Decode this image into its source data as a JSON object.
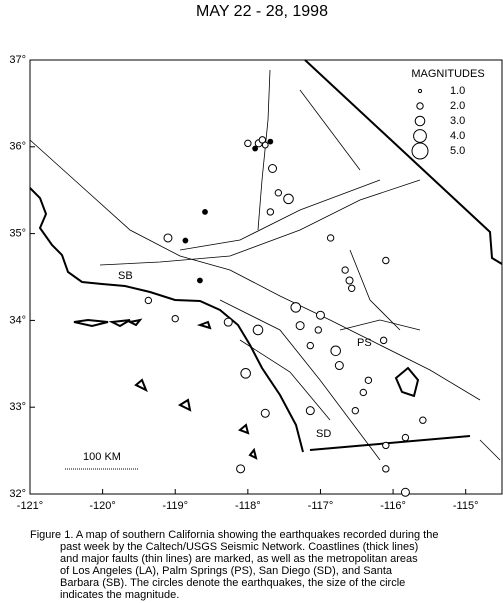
{
  "title": "MAY 22 - 28, 1998",
  "map": {
    "xlim": [
      -121,
      -114.5
    ],
    "ylim": [
      32,
      37
    ],
    "xticks": [
      {
        "value": -121,
        "label": "-121°"
      },
      {
        "value": -120,
        "label": "-120°"
      },
      {
        "value": -119,
        "label": "-119°"
      },
      {
        "value": -118,
        "label": "-118°"
      },
      {
        "value": -117,
        "label": "-117°"
      },
      {
        "value": -116,
        "label": "-116°"
      },
      {
        "value": -115,
        "label": "-115°"
      }
    ],
    "yticks": [
      {
        "value": 32,
        "label": "32°"
      },
      {
        "value": 33,
        "label": "33°"
      },
      {
        "value": 34,
        "label": "34°"
      },
      {
        "value": 35,
        "label": "35°"
      },
      {
        "value": 36,
        "label": "36°"
      },
      {
        "value": 37,
        "label": "37°"
      }
    ],
    "earthquakes": {
      "lon": [
        -118.0,
        -117.85,
        -117.8,
        -117.76,
        -117.9,
        -117.69,
        -117.66,
        -117.44,
        -117.58,
        -119.1,
        -117.69,
        -116.86,
        -116.66,
        -116.6,
        -116.57,
        -116.1,
        -118.66,
        -119.37,
        -119.0,
        -118.27,
        -117.86,
        -117.34,
        -117.28,
        -117.14,
        -116.79,
        -116.74,
        -116.13,
        -116.34,
        -116.41,
        -118.03,
        -117.76,
        -118.1,
        -116.1,
        -116.1,
        -115.83,
        -115.83,
        -117.14,
        -116.52,
        -115.59,
        -118.59,
        -118.86,
        -117.0,
        -117.03
      ],
      "lat": [
        36.04,
        36.04,
        36.08,
        36.02,
        35.98,
        36.06,
        35.75,
        35.4,
        35.47,
        34.95,
        35.25,
        34.95,
        34.58,
        34.46,
        34.37,
        34.69,
        34.46,
        34.23,
        34.02,
        33.98,
        33.89,
        34.15,
        33.94,
        33.71,
        33.65,
        33.48,
        33.77,
        33.31,
        33.17,
        33.39,
        32.93,
        32.29,
        32.56,
        32.29,
        32.02,
        32.65,
        32.96,
        32.96,
        32.85,
        35.25,
        34.92,
        34.06,
        33.89
      ],
      "mag": [
        2.0,
        2.2,
        2.0,
        1.8,
        1.5,
        1.5,
        2.5,
        3.0,
        2.0,
        2.5,
        2.0,
        2.0,
        2.0,
        2.2,
        2.0,
        2.0,
        1.5,
        2.0,
        2.0,
        2.5,
        3.0,
        3.0,
        2.5,
        2.0,
        3.0,
        2.5,
        2.0,
        2.0,
        2.0,
        3.0,
        2.5,
        2.5,
        2.0,
        2.0,
        2.5,
        2.0,
        2.5,
        2.0,
        2.0,
        1.5,
        1.5,
        2.5,
        2.0
      ]
    }
  },
  "legend": {
    "title": "MAGNITUDES",
    "values": [
      {
        "value": 1,
        "label": "1.0"
      },
      {
        "value": 2,
        "label": "2.0"
      },
      {
        "value": 3,
        "label": "3.0"
      },
      {
        "value": 4,
        "label": "4.0"
      },
      {
        "value": 5,
        "label": "5.0"
      }
    ]
  },
  "places": [
    "SB",
    "PS",
    "SD"
  ],
  "scale_bar": "100 KM",
  "caption": [
    "Figure 1. A map of southern California showing the earthquakes recorded during the",
    "past week by the Caltech/USGS Seismic Network.  Coastlines (thick lines)",
    "and major faults (thin lines) are marked, as well as the metropolitan areas",
    "of Los Angeles (LA), Palm Springs (PS), San Diego (SD), and Santa",
    "Barbara (SB).  The circles denote the earthquakes, the size of the circle",
    "indicates the magnitude."
  ]
}
